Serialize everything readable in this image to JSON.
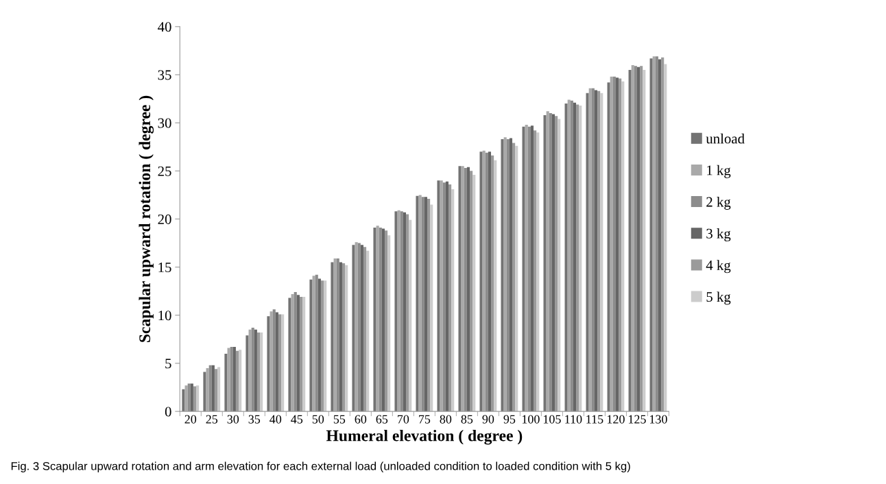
{
  "chart_data": {
    "type": "bar",
    "xlabel": "Humeral elevation ( degree )",
    "ylabel": "Scapular upward rotation ( degree )",
    "categories": [
      "20",
      "25",
      "30",
      "35",
      "40",
      "45",
      "50",
      "55",
      "60",
      "65",
      "70",
      "75",
      "80",
      "85",
      "90",
      "95",
      "100",
      "105",
      "110",
      "115",
      "120",
      "125",
      "130"
    ],
    "series": [
      {
        "name": "unload",
        "color": "#737373",
        "values": [
          2.3,
          4.1,
          6.0,
          7.9,
          9.9,
          11.8,
          13.7,
          15.5,
          17.3,
          19.1,
          20.8,
          22.4,
          24.0,
          25.5,
          27.0,
          28.3,
          29.6,
          30.8,
          32.0,
          33.1,
          34.2,
          35.5,
          36.7
        ]
      },
      {
        "name": "1 kg",
        "color": "#a9a9a9",
        "values": [
          2.7,
          4.5,
          6.6,
          8.5,
          10.4,
          12.2,
          14.1,
          15.9,
          17.6,
          19.3,
          20.9,
          22.5,
          24.0,
          25.5,
          27.1,
          28.5,
          29.8,
          31.2,
          32.4,
          33.6,
          34.8,
          36.0,
          36.9
        ]
      },
      {
        "name": "2 kg",
        "color": "#8c8c8c",
        "values": [
          2.9,
          4.8,
          6.7,
          8.7,
          10.6,
          12.4,
          14.2,
          15.9,
          17.5,
          19.1,
          20.8,
          22.3,
          23.8,
          25.3,
          26.9,
          28.3,
          29.6,
          31.0,
          32.3,
          33.6,
          34.8,
          35.9,
          36.9
        ]
      },
      {
        "name": "3 kg",
        "color": "#666666",
        "values": [
          2.9,
          4.8,
          6.7,
          8.5,
          10.3,
          12.1,
          13.8,
          15.5,
          17.3,
          19.0,
          20.7,
          22.3,
          23.9,
          25.4,
          27.0,
          28.4,
          29.7,
          30.9,
          32.1,
          33.4,
          34.7,
          35.8,
          36.6
        ]
      },
      {
        "name": "4 kg",
        "color": "#9a9a9a",
        "values": [
          2.6,
          4.4,
          6.3,
          8.2,
          10.1,
          11.9,
          13.6,
          15.4,
          17.1,
          18.8,
          20.5,
          22.1,
          23.6,
          25.0,
          26.6,
          27.9,
          29.2,
          30.7,
          31.9,
          33.3,
          34.6,
          35.9,
          36.8
        ]
      },
      {
        "name": "5 kg",
        "color": "#cccccc",
        "values": [
          2.7,
          4.6,
          6.4,
          8.2,
          10.1,
          11.9,
          13.6,
          15.2,
          16.7,
          18.3,
          19.9,
          21.5,
          23.1,
          24.6,
          26.1,
          27.6,
          29.0,
          30.4,
          31.8,
          33.1,
          34.3,
          35.5,
          36.1
        ]
      }
    ],
    "ylim": [
      0,
      40
    ],
    "yticks": [
      0,
      5,
      10,
      15,
      20,
      25,
      30,
      35,
      40
    ],
    "legend": "right",
    "grid": false,
    "annotations": [
      "Fig. 3 Scapular upward rotation and arm elevation for each external load (unloaded condition to loaded condition with 5 kg)"
    ]
  }
}
